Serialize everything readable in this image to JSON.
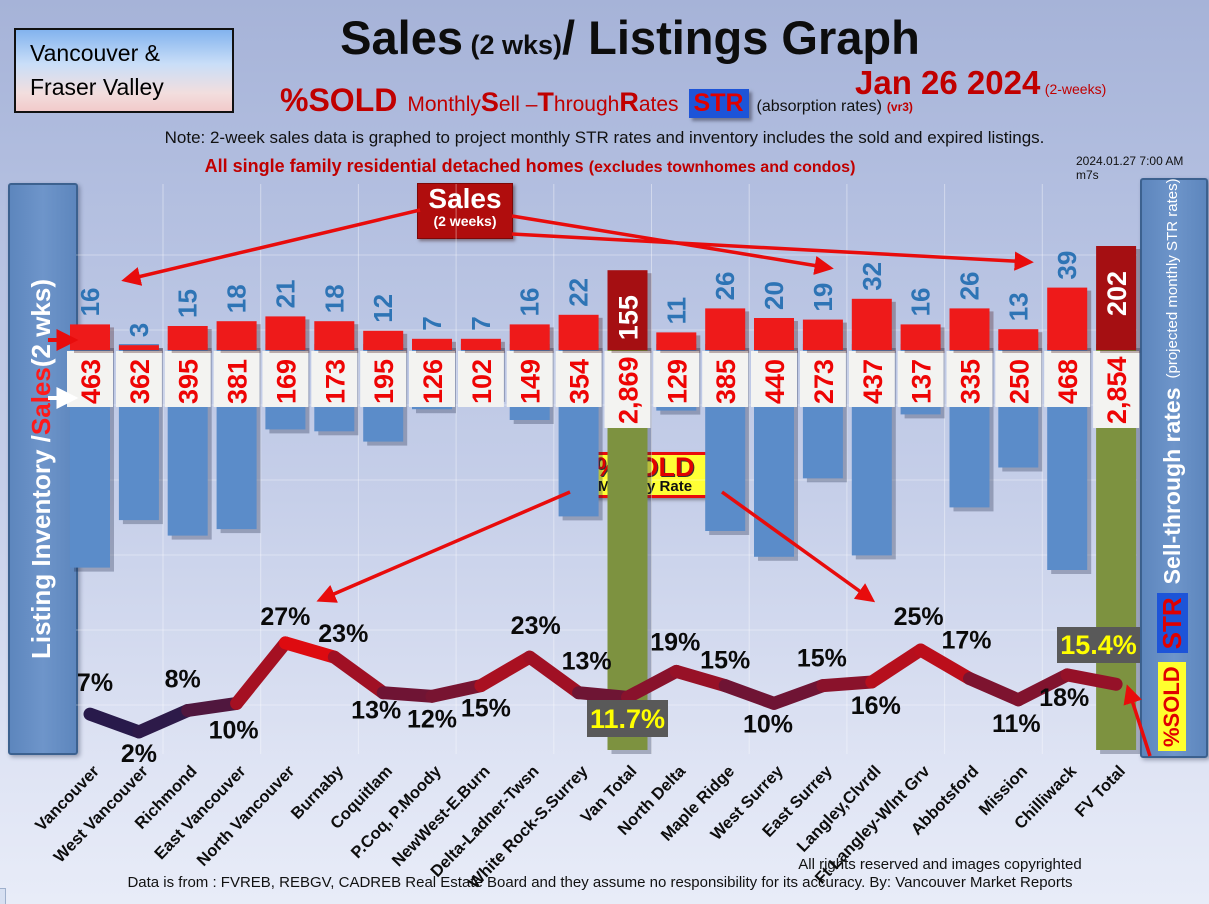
{
  "header": {
    "region_line1": "Vancouver &",
    "region_line2": "Fraser Valley",
    "title_main": "Sales",
    "title_mid": " (2 wks)",
    "title_rest": "/ Listings Graph",
    "date": "Jan 26  2024",
    "date_suffix": "(2-weeks)",
    "subtitle": {
      "pct": "%SOLD",
      "m": "Monthly ",
      "s1": "S",
      "s2": "ell –",
      "t1": "T",
      "t2": "hrough ",
      "r1": "R",
      "r2": "ates"
    },
    "str_badge": "STR",
    "absorption": "(absorption rates)",
    "vr": "(vr3)",
    "note": "Note: 2-week sales data is graphed to project monthly STR rates and inventory includes the sold and expired listings.",
    "subnote_main": "All single family residential detached homes ",
    "subnote_paren": "(excludes townhomes and condos)",
    "timestamp": "2024.01.27 7:00 AM m7s"
  },
  "left_axis": {
    "label_white1": "Listing Inventory / ",
    "label_red": "Sales",
    "label_white2": " (2  wks)"
  },
  "right_axis": {
    "pct_sold_chip": "%SOLD",
    "str_chip": "STR",
    "label": "Sell-through rates ",
    "label_paren": "(projected monthly STR rates)"
  },
  "annotations": {
    "sales_box_title": "Sales",
    "sales_box_sub": "(2 weeks)",
    "pctsold_box_title": "%SOLD",
    "pctsold_box_sub": "Monthly Rate",
    "van_total_rate": "11.7%",
    "fv_total_rate": "15.4%"
  },
  "footer": {
    "rights": "All rights reserved and  images copyrighted",
    "source": "Data is from : FVREB, REBGV, CADREB Real Estate Board and they assume no responsibility for its accuracy. By: Vancouver Market Reports"
  },
  "chart_data": {
    "type": "bar",
    "subtype": "combo bar + line: sales bars (up), inventory bars (down), %SOLD STR line",
    "categories": [
      "Vancouver",
      "West Vancouver",
      "Richmond",
      "East Vancouver",
      "North Vancouver",
      "Burnaby",
      "Coquitlam",
      "P.Coq, P.Moody",
      "NewWest-E.Burn",
      "Delta-Ladner-Twsn",
      "White Rock-S.Surrey",
      "Van Total",
      "North Delta",
      "Maple Ridge",
      "West Surrey",
      "East Surrey",
      "Langley,Clvrdl",
      "Ft Langley-Wlnt Grv",
      "Abbotsford",
      "Mission",
      "Chilliwack",
      "FV Total"
    ],
    "totals_indices": [
      11,
      21
    ],
    "series": [
      {
        "name": "Sales (2 wks)",
        "values": [
          16,
          3,
          15,
          18,
          21,
          18,
          12,
          7,
          7,
          16,
          22,
          155,
          11,
          26,
          20,
          19,
          32,
          16,
          26,
          13,
          39,
          202
        ]
      },
      {
        "name": "Listing Inventory (incl. sold and expired)",
        "values": [
          463,
          362,
          395,
          381,
          169,
          173,
          195,
          126,
          102,
          149,
          354,
          2869,
          129,
          385,
          440,
          273,
          437,
          137,
          335,
          250,
          468,
          2854
        ],
        "display": [
          "463",
          "362",
          "395",
          "381",
          "169",
          "173",
          "195",
          "126",
          "102",
          "149",
          "354",
          "2,869",
          "129",
          "385",
          "440",
          "273",
          "437",
          "137",
          "335",
          "250",
          "468",
          "2,854"
        ]
      },
      {
        "name": "%SOLD monthly sell-through rate (STR)",
        "values": [
          7,
          2,
          8,
          10,
          27,
          23,
          13,
          12,
          15,
          23,
          13,
          11.7,
          19,
          15,
          10,
          15,
          16,
          25,
          17,
          11,
          18,
          15.4
        ],
        "labels": [
          "7%",
          "2%",
          "8%",
          "10%",
          "27%",
          "23%",
          "13%",
          "12%",
          "15%",
          "23%",
          "13%",
          "11.7%",
          "19%",
          "15%",
          "10%",
          "15%",
          "16%",
          "25%",
          "17%",
          "11%",
          "18%",
          "15.4%"
        ]
      }
    ],
    "legend_position": "sidebars",
    "grid": true,
    "colors": {
      "sales_bar": "#ee1a1a",
      "sales_bar_total": "#a50f12",
      "inventory_bar": "#5b8cc9",
      "inventory_bar_total": "#7d9240",
      "band_block": "#f3f3f1",
      "sales_value_text": "#2e74b5",
      "inventory_value_text": "#ee0404",
      "total_sales_text": "#ffffff",
      "line_low": "#121c52",
      "line_high": "#f00505",
      "rate_box_bg": "#595959",
      "rate_box_text": "#ffff00",
      "arrow": "#e80c0c"
    }
  }
}
